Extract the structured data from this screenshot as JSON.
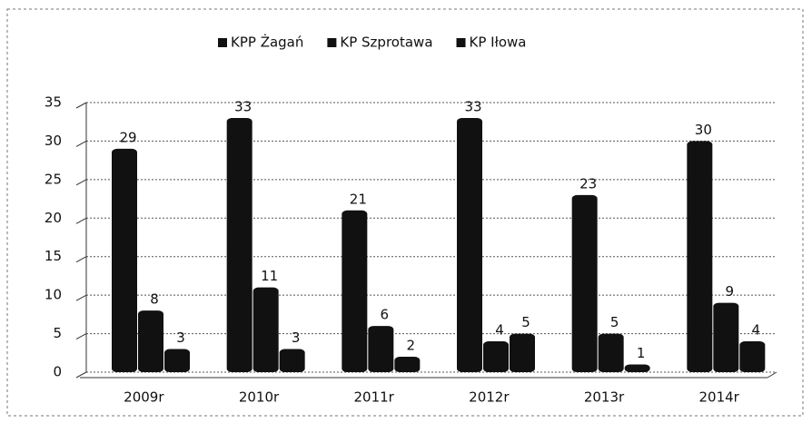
{
  "chart_data": {
    "type": "bar",
    "categories": [
      "2009r",
      "2010r",
      "2011r",
      "2012r",
      "2013r",
      "2014r"
    ],
    "series": [
      {
        "name": "KPP Żagań",
        "color": "#111111",
        "values": [
          29,
          33,
          21,
          33,
          23,
          30
        ]
      },
      {
        "name": "KP Szprotawa",
        "color": "#111111",
        "values": [
          8,
          11,
          6,
          4,
          5,
          9
        ]
      },
      {
        "name": "KP Iłowa",
        "color": "#111111",
        "values": [
          3,
          3,
          2,
          5,
          1,
          4
        ]
      }
    ],
    "ylim": [
      0,
      35
    ],
    "yticks": [
      0,
      5,
      10,
      15,
      20,
      25,
      30,
      35
    ],
    "grid": true,
    "legend": "top"
  }
}
